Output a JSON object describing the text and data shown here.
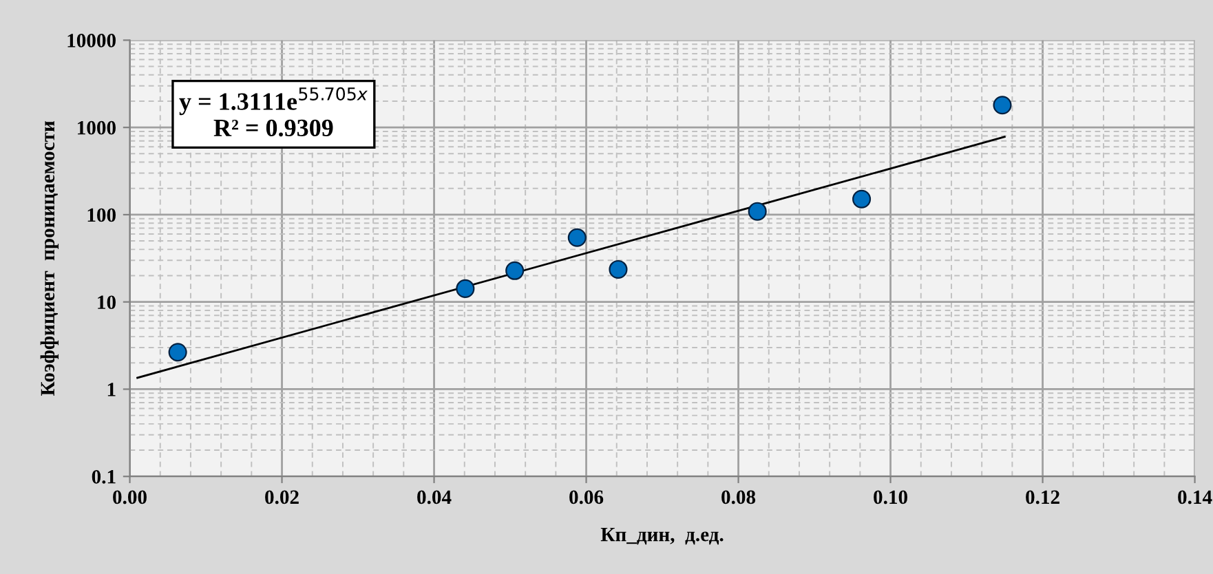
{
  "chart_data": {
    "type": "scatter",
    "xlabel": "Кп_дин,  д.ед.",
    "ylabel": "Коэффициент  проницаемости",
    "log": "y",
    "grid": true,
    "xlim": [
      0,
      0.14
    ],
    "xticks": [
      {
        "value": 0,
        "label": "0.00"
      },
      {
        "value": 0.02,
        "label": "0.02"
      },
      {
        "value": 0.04,
        "label": "0.04"
      },
      {
        "value": 0.06,
        "label": "0.06"
      },
      {
        "value": 0.08,
        "label": "0.08"
      },
      {
        "value": 0.1,
        "label": "0.10"
      },
      {
        "value": 0.12,
        "label": "0.12"
      },
      {
        "value": 0.14,
        "label": "0.14"
      }
    ],
    "ylim": [
      0.1,
      10000
    ],
    "yticks": [
      0.1,
      1,
      10,
      100,
      1000,
      10000
    ],
    "series": [
      {
        "marker": "circle",
        "color": "#0070c0",
        "x": [
          0.0063,
          0.0441,
          0.0506,
          0.0588,
          0.0642,
          0.0825,
          0.0962,
          0.1147
        ],
        "values": [
          2.65,
          14.2,
          22.8,
          54.6,
          23.6,
          109,
          151,
          1800
        ]
      },
      {
        "type": "line",
        "color": "#000000",
        "x": [
          0.001,
          0.115
        ],
        "values": [
          1.35,
          780
        ]
      }
    ],
    "annotations": [
      "y = 1.3111e$^{55.705x}$\nR² = 0.9309"
    ]
  }
}
